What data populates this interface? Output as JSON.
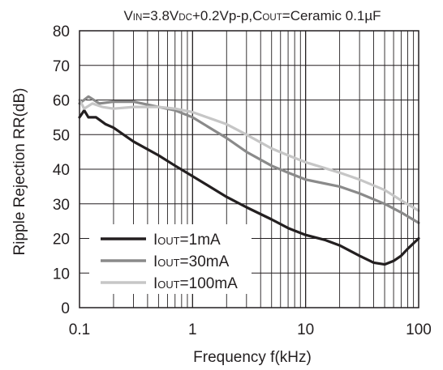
{
  "chart_data": {
    "type": "line",
    "title": {
      "parts": [
        {
          "t": "V",
          "sub": false
        },
        {
          "t": "IN",
          "sub": true
        },
        {
          "t": "=3.8V",
          "sub": false
        },
        {
          "t": "DC",
          "sub": true
        },
        {
          "t": "+0.2Vp-p,C",
          "sub": false
        },
        {
          "t": "OUT",
          "sub": true
        },
        {
          "t": "=Ceramic 0.1µF",
          "sub": false
        }
      ]
    },
    "xlabel": "Frequency f(kHz)",
    "ylabel": "Ripple Rejection RR(dB)",
    "xscale": "log",
    "xlim": [
      0.1,
      100
    ],
    "ylim": [
      0,
      80
    ],
    "xticks": [
      0.1,
      1,
      10,
      100
    ],
    "xtick_labels": [
      "0.1",
      "1",
      "10",
      "100"
    ],
    "yticks": [
      0,
      10,
      20,
      30,
      40,
      50,
      60,
      70,
      80
    ],
    "ytick_labels": [
      "0",
      "10",
      "20",
      "30",
      "40",
      "50",
      "60",
      "70",
      "80"
    ],
    "grid": true,
    "legend_position": "bottom-left",
    "series": [
      {
        "name_parts": [
          {
            "t": "I",
            "sub": false
          },
          {
            "t": "OUT",
            "sub": true
          },
          {
            "t": "=1mA",
            "sub": false
          }
        ],
        "color": "#231f20",
        "points": [
          [
            0.1,
            55
          ],
          [
            0.11,
            57
          ],
          [
            0.12,
            55
          ],
          [
            0.14,
            55
          ],
          [
            0.17,
            53
          ],
          [
            0.2,
            52
          ],
          [
            0.3,
            48
          ],
          [
            0.5,
            44
          ],
          [
            0.7,
            41
          ],
          [
            1,
            38
          ],
          [
            2,
            32
          ],
          [
            3,
            29
          ],
          [
            5,
            25.5
          ],
          [
            7,
            23
          ],
          [
            10,
            21
          ],
          [
            15,
            19.5
          ],
          [
            20,
            18
          ],
          [
            30,
            15
          ],
          [
            40,
            13
          ],
          [
            50,
            12.5
          ],
          [
            60,
            13.5
          ],
          [
            70,
            15
          ],
          [
            80,
            17
          ],
          [
            100,
            20
          ]
        ]
      },
      {
        "name_parts": [
          {
            "t": "I",
            "sub": false
          },
          {
            "t": "OUT",
            "sub": true
          },
          {
            "t": "=30mA",
            "sub": false
          }
        ],
        "color": "#8a8a8a",
        "points": [
          [
            0.1,
            59
          ],
          [
            0.12,
            61
          ],
          [
            0.15,
            59
          ],
          [
            0.2,
            59.5
          ],
          [
            0.3,
            59.5
          ],
          [
            0.5,
            58
          ],
          [
            0.7,
            57
          ],
          [
            1,
            55
          ],
          [
            2,
            49
          ],
          [
            3,
            45
          ],
          [
            5,
            41
          ],
          [
            7,
            39
          ],
          [
            10,
            37
          ],
          [
            20,
            35
          ],
          [
            30,
            33
          ],
          [
            50,
            30
          ],
          [
            70,
            27.5
          ],
          [
            100,
            24.5
          ]
        ]
      },
      {
        "name_parts": [
          {
            "t": "I",
            "sub": false
          },
          {
            "t": "OUT",
            "sub": true
          },
          {
            "t": "=100mA",
            "sub": false
          }
        ],
        "color": "#c6c6c6",
        "points": [
          [
            0.1,
            60
          ],
          [
            0.11,
            57.5
          ],
          [
            0.13,
            59
          ],
          [
            0.16,
            58
          ],
          [
            0.2,
            57.5
          ],
          [
            0.3,
            58
          ],
          [
            0.5,
            58
          ],
          [
            0.7,
            57.5
          ],
          [
            1,
            56.5
          ],
          [
            2,
            53
          ],
          [
            3,
            50
          ],
          [
            5,
            46
          ],
          [
            7,
            44
          ],
          [
            10,
            42
          ],
          [
            20,
            39
          ],
          [
            30,
            37
          ],
          [
            50,
            34
          ],
          [
            70,
            31
          ],
          [
            100,
            28
          ]
        ]
      }
    ]
  }
}
